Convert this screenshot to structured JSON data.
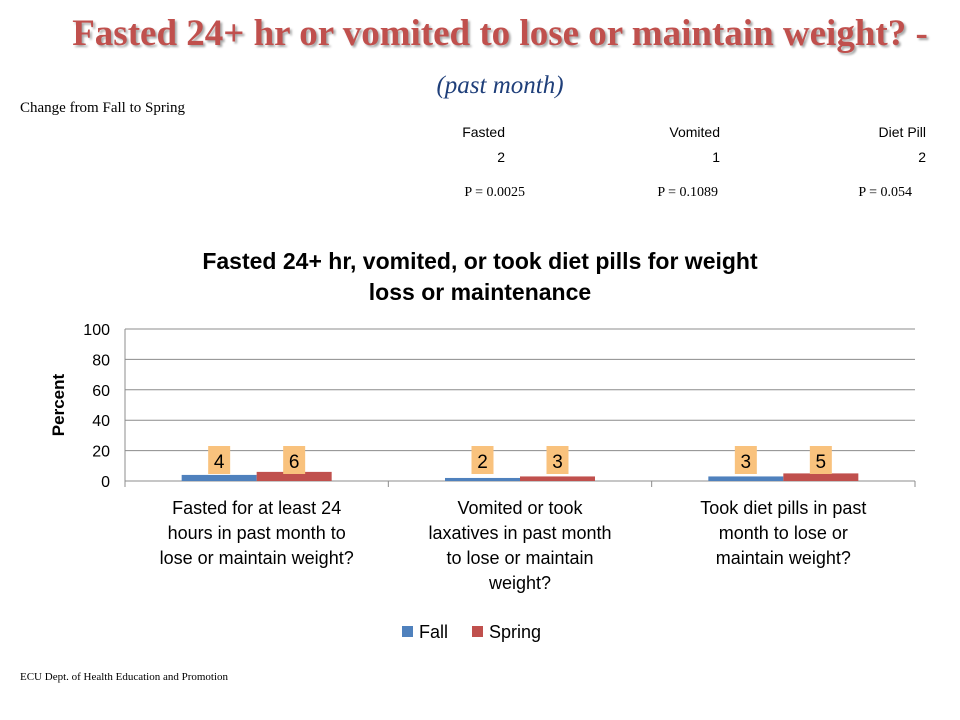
{
  "slide": {
    "title_main": "Fasted 24+ hr or vomited to lose or maintain weight? -",
    "title_sub": "(past month)",
    "change_label": "Change  from Fall to Spring",
    "footer": "ECU Dept. of Health Education and Promotion"
  },
  "change_stats": [
    {
      "label": "Fasted",
      "value": "2",
      "p": "P = 0.0025"
    },
    {
      "label": "Vomited",
      "value": "1",
      "p": "P = 0.1089"
    },
    {
      "label": "Diet Pill",
      "value": "2",
      "p": "P = 0.054"
    }
  ],
  "chart_data": {
    "type": "bar",
    "title": "Fasted 24+ hr, vomited, or took diet pills for weight loss or maintenance",
    "title_lines": [
      "Fasted 24+ hr, vomited, or took diet pills for weight",
      "loss or maintenance"
    ],
    "ylabel": "Percent",
    "ylim": [
      0,
      100
    ],
    "yticks": [
      0,
      20,
      40,
      60,
      80,
      100
    ],
    "grid": true,
    "legend_position": "bottom",
    "categories": [
      "Fasted for at least 24 hours in past month to lose or maintain weight?",
      "Vomited or took laxatives in past month to lose or maintain weight?",
      "Took diet pills in past month to lose or maintain weight?"
    ],
    "category_lines": [
      [
        "Fasted for at least 24",
        "hours in past month to",
        "lose or maintain weight?"
      ],
      [
        "Vomited or took",
        "laxatives in past month",
        "to lose or maintain",
        "weight?"
      ],
      [
        "Took diet pills in past",
        "month to lose or",
        "maintain weight?"
      ]
    ],
    "series": [
      {
        "name": "Fall",
        "values": [
          4,
          2,
          3
        ],
        "color": "#4f81bd"
      },
      {
        "name": "Spring",
        "values": [
          6,
          3,
          5
        ],
        "color": "#c0504d"
      }
    ],
    "label_bg": "#f9c27d"
  }
}
